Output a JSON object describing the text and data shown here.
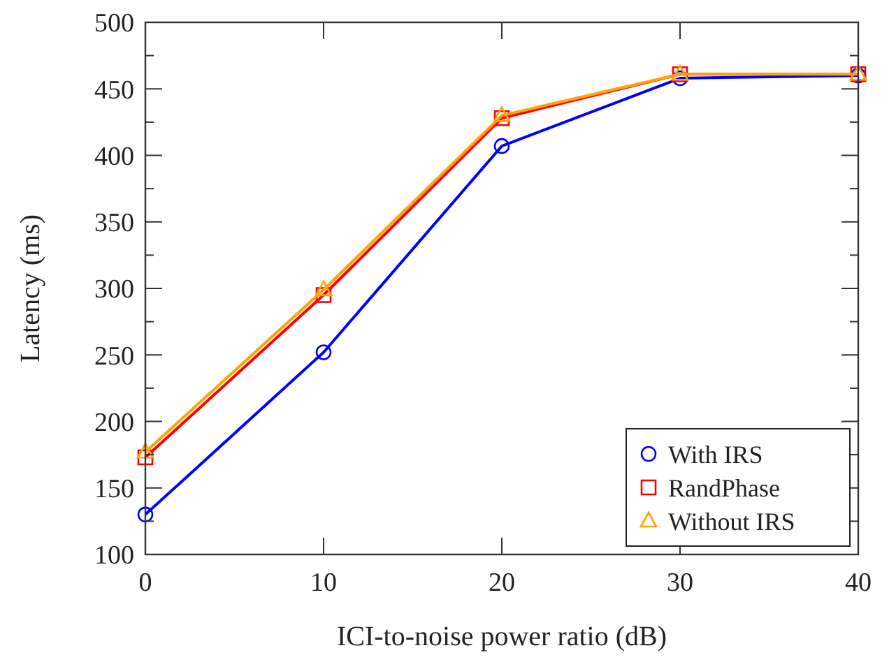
{
  "chart_data": {
    "type": "line",
    "xlabel": "ICI-to-noise power ratio (dB)",
    "ylabel": "Latency (ms)",
    "x": [
      0,
      10,
      20,
      30,
      40
    ],
    "series": [
      {
        "name": "With IRS",
        "color": "#0000ff",
        "marker": "circle",
        "values": [
          130,
          252,
          407,
          458,
          460
        ]
      },
      {
        "name": "RandPhase",
        "color": "#ff0000",
        "marker": "square",
        "values": [
          173,
          295,
          428,
          461,
          461
        ]
      },
      {
        "name": "Without IRS",
        "color": "#ffa500",
        "marker": "triangle",
        "values": [
          177,
          299,
          430,
          461,
          461
        ]
      }
    ],
    "xlim": [
      0,
      40
    ],
    "xticks": [
      0,
      10,
      20,
      30,
      40
    ],
    "ylim": [
      100,
      500
    ],
    "yticks": [
      100,
      {
        "value": 125,
        "label": null
      },
      150,
      {
        "value": 175,
        "label": null
      },
      200,
      {
        "value": 225,
        "label": null
      },
      250,
      {
        "value": 275,
        "label": null
      },
      300,
      {
        "value": 325,
        "label": null
      },
      350,
      {
        "value": 375,
        "label": null
      },
      400,
      {
        "value": 425,
        "label": null
      },
      450,
      {
        "value": 475,
        "label": null
      },
      500
    ],
    "grid": false,
    "legend": "bottom right",
    "line_style": "solid"
  }
}
